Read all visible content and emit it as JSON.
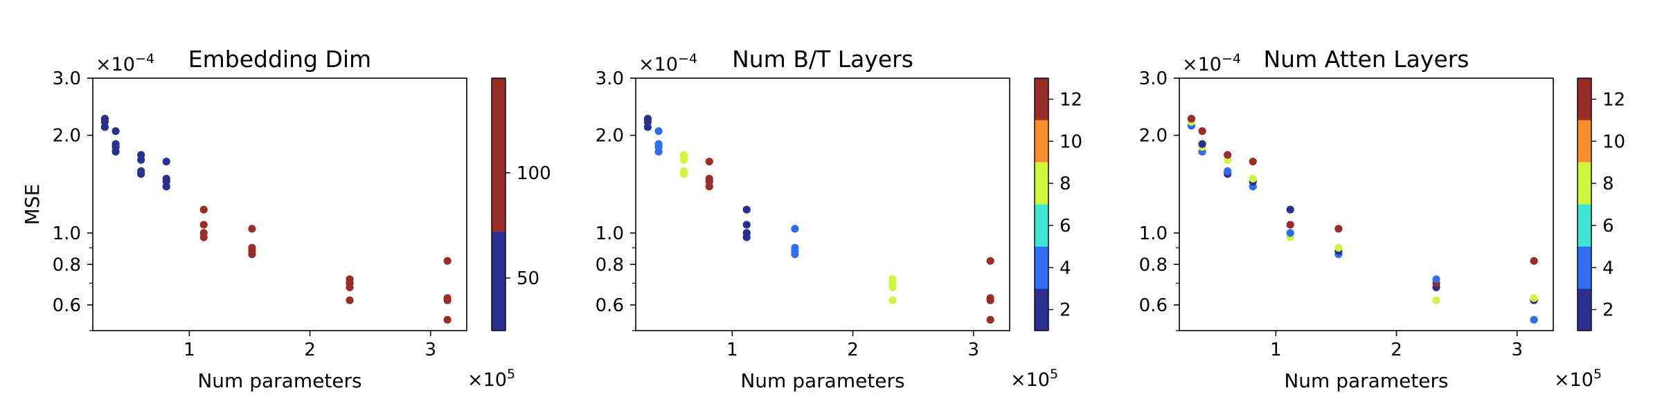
{
  "figure": {
    "y_axis_label": "MSE",
    "x_axis_label": "Num parameters",
    "x_multiplier": {
      "base": "×10",
      "exp": "5"
    },
    "y_multiplier": {
      "base": "×10",
      "exp": "−4"
    }
  },
  "colors": {
    "c2": "#2b2f8f",
    "c4": "#2c6df2",
    "c6": "#3de7cf",
    "c8": "#d2f43a",
    "c10": "#fa8c2b",
    "c12": "#982d2a"
  },
  "chart_data": [
    {
      "type": "scatter",
      "title": "Embedding Dim",
      "xlabel": "Num parameters",
      "ylabel": "MSE",
      "x_unit": "×10^5",
      "y_unit": "×10^-4",
      "xlim": [
        0.2,
        3.3
      ],
      "ylim": [
        0.5,
        3.0
      ],
      "yscale": "log",
      "x_ticks": [
        "1",
        "2",
        "3"
      ],
      "y_ticks": [
        "0.6",
        "0.8",
        "1.0",
        "2.0",
        "3.0"
      ],
      "colorbar": {
        "min": 25,
        "max": 145,
        "ticks": [
          "50",
          "100"
        ],
        "bounds": [
          25,
          72,
          145
        ],
        "colors": [
          "#2b2f8f",
          "#982d2a"
        ]
      },
      "points": [
        {
          "x": 0.3,
          "y": 2.25,
          "c": "#2b2f8f"
        },
        {
          "x": 0.3,
          "y": 2.2,
          "c": "#2b2f8f"
        },
        {
          "x": 0.3,
          "y": 2.12,
          "c": "#2b2f8f"
        },
        {
          "x": 0.39,
          "y": 2.06,
          "c": "#2b2f8f"
        },
        {
          "x": 0.39,
          "y": 1.88,
          "c": "#2b2f8f"
        },
        {
          "x": 0.39,
          "y": 1.84,
          "c": "#2b2f8f"
        },
        {
          "x": 0.39,
          "y": 1.78,
          "c": "#2b2f8f"
        },
        {
          "x": 0.6,
          "y": 1.74,
          "c": "#2b2f8f"
        },
        {
          "x": 0.6,
          "y": 1.68,
          "c": "#2b2f8f"
        },
        {
          "x": 0.6,
          "y": 1.55,
          "c": "#2b2f8f"
        },
        {
          "x": 0.6,
          "y": 1.52,
          "c": "#2b2f8f"
        },
        {
          "x": 0.81,
          "y": 1.66,
          "c": "#2b2f8f"
        },
        {
          "x": 0.81,
          "y": 1.47,
          "c": "#2b2f8f"
        },
        {
          "x": 0.81,
          "y": 1.44,
          "c": "#2b2f8f"
        },
        {
          "x": 0.81,
          "y": 1.39,
          "c": "#2b2f8f"
        },
        {
          "x": 1.12,
          "y": 1.18,
          "c": "#982d2a"
        },
        {
          "x": 1.12,
          "y": 1.06,
          "c": "#982d2a"
        },
        {
          "x": 1.12,
          "y": 1.0,
          "c": "#982d2a"
        },
        {
          "x": 1.12,
          "y": 0.97,
          "c": "#982d2a"
        },
        {
          "x": 1.52,
          "y": 1.03,
          "c": "#982d2a"
        },
        {
          "x": 1.52,
          "y": 0.9,
          "c": "#982d2a"
        },
        {
          "x": 1.52,
          "y": 0.88,
          "c": "#982d2a"
        },
        {
          "x": 1.52,
          "y": 0.86,
          "c": "#982d2a"
        },
        {
          "x": 2.33,
          "y": 0.72,
          "c": "#982d2a"
        },
        {
          "x": 2.33,
          "y": 0.7,
          "c": "#982d2a"
        },
        {
          "x": 2.33,
          "y": 0.68,
          "c": "#982d2a"
        },
        {
          "x": 2.33,
          "y": 0.62,
          "c": "#982d2a"
        },
        {
          "x": 3.14,
          "y": 0.82,
          "c": "#982d2a"
        },
        {
          "x": 3.14,
          "y": 0.63,
          "c": "#982d2a"
        },
        {
          "x": 3.14,
          "y": 0.62,
          "c": "#982d2a"
        },
        {
          "x": 3.14,
          "y": 0.54,
          "c": "#982d2a"
        }
      ]
    },
    {
      "type": "scatter",
      "title": "Num B/T Layers",
      "xlabel": "Num parameters",
      "ylabel": "",
      "x_unit": "×10^5",
      "y_unit": "×10^-4",
      "xlim": [
        0.2,
        3.3
      ],
      "ylim": [
        0.5,
        3.0
      ],
      "yscale": "log",
      "x_ticks": [
        "1",
        "2",
        "3"
      ],
      "y_ticks": [
        "0.6",
        "0.8",
        "1.0",
        "2.0",
        "3.0"
      ],
      "colorbar": {
        "min": 1,
        "max": 13,
        "ticks": [
          "2",
          "4",
          "6",
          "8",
          "10",
          "12"
        ],
        "bounds": [
          1,
          3,
          5,
          7,
          9,
          11,
          13
        ],
        "colors": [
          "#2b2f8f",
          "#2c6df2",
          "#3de7cf",
          "#d2f43a",
          "#fa8c2b",
          "#982d2a"
        ]
      },
      "points": [
        {
          "x": 0.3,
          "y": 2.25,
          "c": "#2b2f8f"
        },
        {
          "x": 0.3,
          "y": 2.2,
          "c": "#2b2f8f"
        },
        {
          "x": 0.3,
          "y": 2.12,
          "c": "#2b2f8f"
        },
        {
          "x": 0.39,
          "y": 2.06,
          "c": "#2c6df2"
        },
        {
          "x": 0.39,
          "y": 1.88,
          "c": "#2c6df2"
        },
        {
          "x": 0.39,
          "y": 1.84,
          "c": "#2c6df2"
        },
        {
          "x": 0.39,
          "y": 1.78,
          "c": "#2c6df2"
        },
        {
          "x": 0.6,
          "y": 1.74,
          "c": "#d2f43a"
        },
        {
          "x": 0.6,
          "y": 1.68,
          "c": "#d2f43a"
        },
        {
          "x": 0.6,
          "y": 1.55,
          "c": "#d2f43a"
        },
        {
          "x": 0.6,
          "y": 1.52,
          "c": "#d2f43a"
        },
        {
          "x": 0.81,
          "y": 1.66,
          "c": "#982d2a"
        },
        {
          "x": 0.81,
          "y": 1.47,
          "c": "#982d2a"
        },
        {
          "x": 0.81,
          "y": 1.44,
          "c": "#982d2a"
        },
        {
          "x": 0.81,
          "y": 1.39,
          "c": "#982d2a"
        },
        {
          "x": 1.12,
          "y": 1.18,
          "c": "#2b2f8f"
        },
        {
          "x": 1.12,
          "y": 1.06,
          "c": "#2b2f8f"
        },
        {
          "x": 1.12,
          "y": 1.0,
          "c": "#2b2f8f"
        },
        {
          "x": 1.12,
          "y": 0.97,
          "c": "#2b2f8f"
        },
        {
          "x": 1.52,
          "y": 1.03,
          "c": "#2c6df2"
        },
        {
          "x": 1.52,
          "y": 0.9,
          "c": "#2c6df2"
        },
        {
          "x": 1.52,
          "y": 0.88,
          "c": "#2c6df2"
        },
        {
          "x": 1.52,
          "y": 0.86,
          "c": "#2c6df2"
        },
        {
          "x": 2.33,
          "y": 0.72,
          "c": "#d2f43a"
        },
        {
          "x": 2.33,
          "y": 0.7,
          "c": "#d2f43a"
        },
        {
          "x": 2.33,
          "y": 0.68,
          "c": "#d2f43a"
        },
        {
          "x": 2.33,
          "y": 0.62,
          "c": "#d2f43a"
        },
        {
          "x": 3.14,
          "y": 0.82,
          "c": "#982d2a"
        },
        {
          "x": 3.14,
          "y": 0.63,
          "c": "#982d2a"
        },
        {
          "x": 3.14,
          "y": 0.62,
          "c": "#982d2a"
        },
        {
          "x": 3.14,
          "y": 0.54,
          "c": "#982d2a"
        }
      ]
    },
    {
      "type": "scatter",
      "title": "Num Atten Layers",
      "xlabel": "Num parameters",
      "ylabel": "",
      "x_unit": "×10^5",
      "y_unit": "×10^-4",
      "xlim": [
        0.2,
        3.3
      ],
      "ylim": [
        0.5,
        3.0
      ],
      "yscale": "log",
      "x_ticks": [
        "1",
        "2",
        "3"
      ],
      "y_ticks": [
        "0.6",
        "0.8",
        "1.0",
        "2.0",
        "3.0"
      ],
      "colorbar": {
        "min": 1,
        "max": 13,
        "ticks": [
          "2",
          "4",
          "6",
          "8",
          "10",
          "12"
        ],
        "bounds": [
          1,
          3,
          5,
          7,
          9,
          11,
          13
        ],
        "colors": [
          "#2b2f8f",
          "#2c6df2",
          "#3de7cf",
          "#d2f43a",
          "#fa8c2b",
          "#982d2a"
        ]
      },
      "points": [
        {
          "x": 0.3,
          "y": 2.14,
          "c": "#2c6df2"
        },
        {
          "x": 0.3,
          "y": 2.2,
          "c": "#d2f43a"
        },
        {
          "x": 0.3,
          "y": 2.25,
          "c": "#982d2a"
        },
        {
          "x": 0.39,
          "y": 1.78,
          "c": "#2c6df2"
        },
        {
          "x": 0.39,
          "y": 1.84,
          "c": "#d2f43a"
        },
        {
          "x": 0.39,
          "y": 1.88,
          "c": "#2b2f8f"
        },
        {
          "x": 0.39,
          "y": 2.06,
          "c": "#982d2a"
        },
        {
          "x": 0.6,
          "y": 1.52,
          "c": "#2b2f8f"
        },
        {
          "x": 0.6,
          "y": 1.55,
          "c": "#2c6df2"
        },
        {
          "x": 0.6,
          "y": 1.68,
          "c": "#d2f43a"
        },
        {
          "x": 0.6,
          "y": 1.74,
          "c": "#982d2a"
        },
        {
          "x": 0.81,
          "y": 1.39,
          "c": "#2c6df2"
        },
        {
          "x": 0.81,
          "y": 1.44,
          "c": "#2b2f8f"
        },
        {
          "x": 0.81,
          "y": 1.47,
          "c": "#d2f43a"
        },
        {
          "x": 0.81,
          "y": 1.66,
          "c": "#982d2a"
        },
        {
          "x": 1.12,
          "y": 0.97,
          "c": "#d2f43a"
        },
        {
          "x": 1.12,
          "y": 1.0,
          "c": "#2c6df2"
        },
        {
          "x": 1.12,
          "y": 1.06,
          "c": "#982d2a"
        },
        {
          "x": 1.12,
          "y": 1.18,
          "c": "#2b2f8f"
        },
        {
          "x": 1.52,
          "y": 0.86,
          "c": "#2c6df2"
        },
        {
          "x": 1.52,
          "y": 0.88,
          "c": "#2b2f8f"
        },
        {
          "x": 1.52,
          "y": 0.9,
          "c": "#d2f43a"
        },
        {
          "x": 1.52,
          "y": 1.03,
          "c": "#982d2a"
        },
        {
          "x": 2.33,
          "y": 0.62,
          "c": "#d2f43a"
        },
        {
          "x": 2.33,
          "y": 0.68,
          "c": "#2b2f8f"
        },
        {
          "x": 2.33,
          "y": 0.7,
          "c": "#982d2a"
        },
        {
          "x": 2.33,
          "y": 0.72,
          "c": "#2c6df2"
        },
        {
          "x": 3.14,
          "y": 0.54,
          "c": "#2c6df2"
        },
        {
          "x": 3.14,
          "y": 0.62,
          "c": "#2b2f8f"
        },
        {
          "x": 3.14,
          "y": 0.63,
          "c": "#d2f43a"
        },
        {
          "x": 3.14,
          "y": 0.82,
          "c": "#982d2a"
        }
      ]
    }
  ]
}
